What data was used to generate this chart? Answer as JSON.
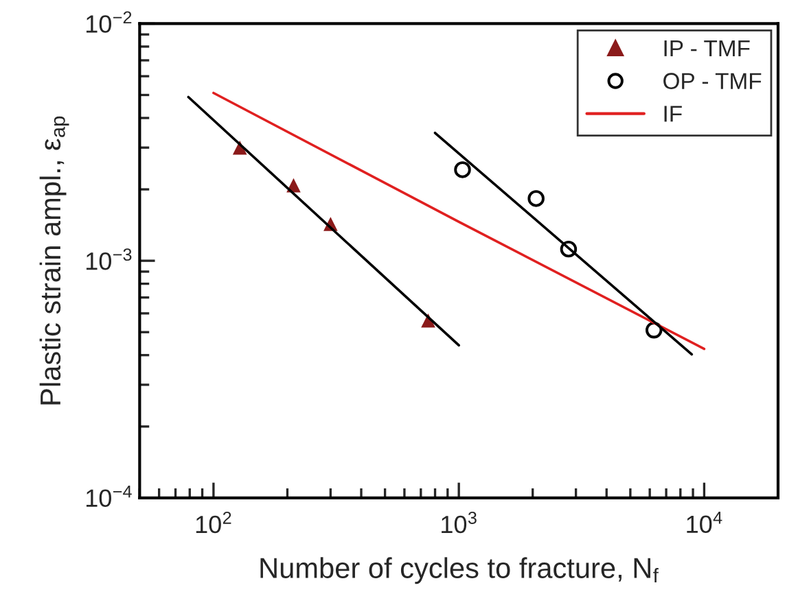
{
  "chart_data": {
    "type": "scatter",
    "xlabel": "Number of cycles to fracture, N$_{f}$",
    "ylabel": "Plastic strain ampl., ε$_{ap}$",
    "log": "xy",
    "xlim": [
      50,
      20000
    ],
    "ylim": [
      0.0001,
      0.01
    ],
    "xticks": [
      {
        "value": 100,
        "label": "10$^{2}$"
      },
      {
        "value": 1000,
        "label": "10$^{3}$"
      },
      {
        "value": 10000,
        "label": "10$^{4}$"
      }
    ],
    "yticks": [
      {
        "value": 0.0001,
        "label": "10$^{−4}$"
      },
      {
        "value": 0.001,
        "label": "10$^{−3}$"
      },
      {
        "value": 0.01,
        "label": "10$^{−2}$"
      }
    ],
    "grid": false,
    "legend": "top right",
    "series": [
      {
        "name": "IP - TMF",
        "marker": "triangle",
        "color": "#8b1a1a",
        "x": [
          128,
          212,
          300,
          750
        ],
        "values": [
          0.003,
          0.00208,
          0.00143,
          0.00056
        ]
      },
      {
        "name": "OP - TMF",
        "marker": "circle",
        "color": "#000000",
        "x": [
          1035,
          2065,
          2800,
          6240
        ],
        "values": [
          0.00242,
          0.00183,
          0.00112,
          0.00051
        ]
      },
      {
        "name": "IF",
        "type": "line",
        "line_style": "solid",
        "color": "#e02020",
        "x": [
          100,
          1000,
          10000
        ],
        "values": [
          0.0051,
          0.00146,
          0.000425
        ]
      },
      {
        "type": "line",
        "line_style": "solid",
        "color": "#000000",
        "x": [
          79,
          1000
        ],
        "values": [
          0.0049,
          0.00044
        ]
      },
      {
        "type": "line",
        "line_style": "solid",
        "color": "#000000",
        "x": [
          800,
          8900
        ],
        "values": [
          0.00346,
          0.000403
        ]
      }
    ]
  }
}
